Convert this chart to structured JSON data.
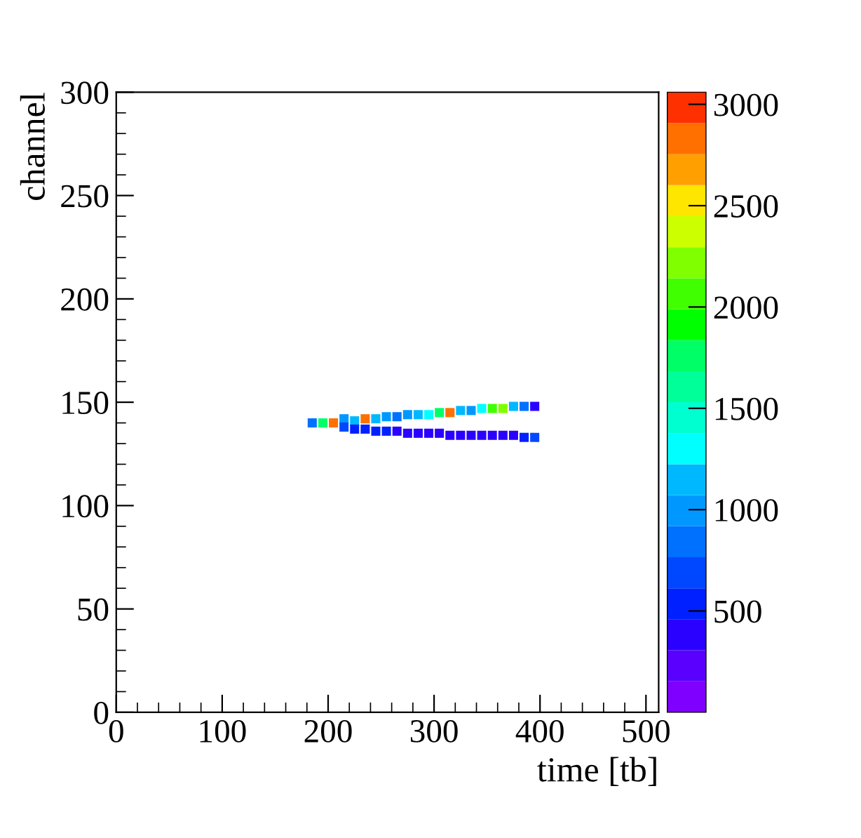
{
  "chart_data": {
    "type": "scatter",
    "xlabel": "time [tb]",
    "ylabel": "channel",
    "marker": "square",
    "xlim": [
      0,
      512
    ],
    "xticks": [
      0,
      100,
      200,
      300,
      400,
      500
    ],
    "ylim": [
      0,
      300
    ],
    "yticks": [
      0,
      50,
      100,
      150,
      200,
      250,
      300
    ],
    "clim": [
      0,
      3060
    ],
    "cticks": [
      500,
      1000,
      1500,
      2000,
      2500,
      3000
    ],
    "x": [
      185,
      195,
      205,
      215,
      225,
      235,
      245,
      255,
      265,
      275,
      285,
      295,
      305,
      315,
      325,
      335,
      345,
      355,
      365,
      375,
      385,
      395,
      215,
      225,
      235,
      245,
      255,
      265,
      275,
      285,
      295,
      305,
      315,
      325,
      335,
      345,
      355,
      365,
      375,
      385,
      395
    ],
    "values": [
      140,
      140,
      140,
      142,
      141,
      142,
      142,
      143,
      143,
      144,
      144,
      144,
      145,
      145,
      146,
      146,
      147,
      147,
      147,
      148,
      148,
      148,
      138,
      137,
      137,
      136,
      136,
      136,
      135,
      135,
      135,
      135,
      134,
      134,
      134,
      134,
      134,
      134,
      134,
      133,
      133
    ],
    "cvalues": [
      800,
      1800,
      2900,
      1000,
      1200,
      2800,
      1100,
      1000,
      900,
      1000,
      1100,
      1300,
      1800,
      2800,
      1200,
      1000,
      1300,
      2000,
      2200,
      1200,
      800,
      400,
      700,
      600,
      600,
      500,
      500,
      400,
      400,
      400,
      450,
      400,
      400,
      450,
      400,
      400,
      400,
      400,
      450,
      600,
      700
    ]
  }
}
